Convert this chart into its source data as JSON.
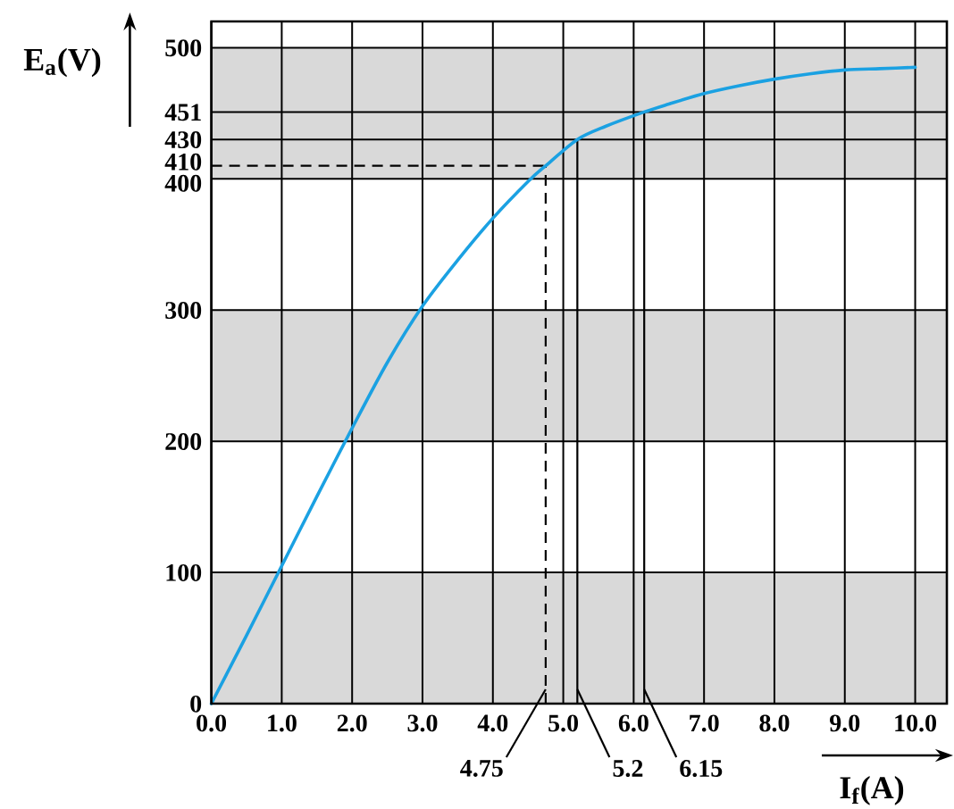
{
  "chart_data": {
    "type": "line",
    "xlabel": "I$_{f}$(A)",
    "ylabel": "E$_{a}$(V)",
    "x": [
      0,
      0.5,
      1,
      1.5,
      2,
      2.5,
      3,
      3.5,
      4,
      4.5,
      4.75,
      5.2,
      5.6,
      6.15,
      6.5,
      7,
      7.5,
      8,
      8.5,
      9,
      9.5,
      10
    ],
    "series": [
      {
        "color": "#1ba1e2",
        "values": [
          0,
          52,
          105,
          158,
          210,
          260,
          303,
          338,
          370,
          398,
          410,
          430,
          440,
          451,
          457,
          465,
          471,
          476,
          480,
          483,
          484,
          485
        ]
      }
    ],
    "xlim": [
      0,
      10.45
    ],
    "ylim": [
      0,
      520
    ],
    "xticks": [
      {
        "value": 0,
        "label": "0.0"
      },
      {
        "value": 1,
        "label": "1.0"
      },
      {
        "value": 2,
        "label": "2.0"
      },
      {
        "value": 3,
        "label": "3.0"
      },
      {
        "value": 4,
        "label": "4.0"
      },
      {
        "value": 5,
        "label": "5.0"
      },
      {
        "value": 6,
        "label": "6.0"
      },
      {
        "value": 7,
        "label": "7.0"
      },
      {
        "value": 8,
        "label": "8.0"
      },
      {
        "value": 9,
        "label": "9.0"
      },
      {
        "value": 10,
        "label": "10.0"
      }
    ],
    "yticks": [
      0,
      100,
      200,
      300,
      400,
      430,
      451,
      500
    ],
    "grid": true,
    "bands": [
      {
        "axis": "y",
        "from": 0,
        "to": 100,
        "color": "#d9d9d9"
      },
      {
        "axis": "y",
        "from": 200,
        "to": 300,
        "color": "#d9d9d9"
      },
      {
        "axis": "y",
        "from": 400,
        "to": 500,
        "color": "#d9d9d9"
      }
    ],
    "ref_lines": [
      {
        "axis": "x",
        "value": 4.75,
        "label": "4.75",
        "line_style": "dashed"
      },
      {
        "axis": "x",
        "value": 5.2,
        "label": "5.2"
      },
      {
        "axis": "x",
        "value": 6.15,
        "label": "6.15"
      },
      {
        "axis": "y",
        "value": 410,
        "label": "410",
        "line_style": "dashed"
      }
    ]
  }
}
